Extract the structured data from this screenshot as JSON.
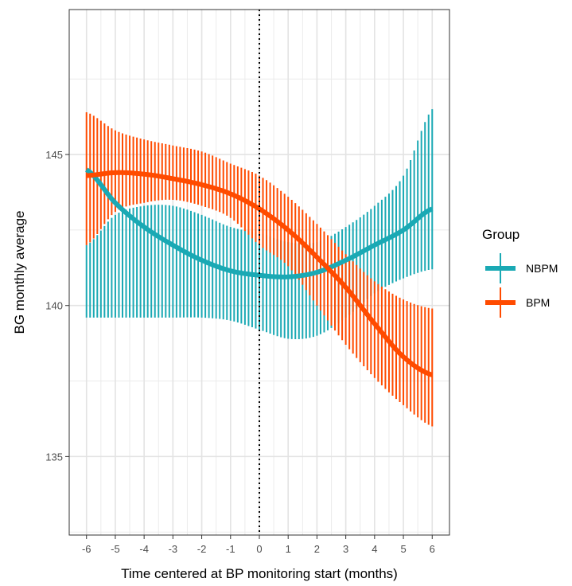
{
  "chart_data": {
    "type": "line",
    "xlabel": "Time centered at BP monitoring start (months)",
    "ylabel": "BG monthly average",
    "xlim": [
      -6.6,
      6.6
    ],
    "ylim": [
      132.4,
      149.8
    ],
    "xticks": [
      -6,
      -5,
      -4,
      -3,
      -2,
      -1,
      0,
      1,
      2,
      3,
      4,
      5,
      6
    ],
    "yticks": [
      135,
      140,
      145
    ],
    "xtick_labels": [
      "-6",
      "-5",
      "-4",
      "-3",
      "-2",
      "-1",
      "0",
      "1",
      "2",
      "3",
      "4",
      "5",
      "6"
    ],
    "ytick_labels": [
      "135",
      "140",
      "145"
    ],
    "grid": true,
    "reference_line": {
      "x": 0,
      "style": "dotted"
    },
    "legend": {
      "title": "Group",
      "position": "right",
      "entries": [
        "NBPM",
        "BPM"
      ]
    },
    "series": [
      {
        "name": "NBPM",
        "color": "#1aa9b4",
        "x": [
          -6,
          -5,
          -4,
          -3,
          -2,
          -1,
          0,
          1,
          2,
          3,
          4,
          5,
          6
        ],
        "y": [
          144.5,
          143.4,
          142.6,
          142.0,
          141.5,
          141.15,
          141.0,
          140.95,
          141.1,
          141.5,
          142.0,
          142.5,
          143.2
        ],
        "lower": [
          139.6,
          139.6,
          139.6,
          139.6,
          139.6,
          139.5,
          139.2,
          138.9,
          139.0,
          139.6,
          140.4,
          140.9,
          141.2
        ],
        "upper": [
          142.0,
          143.0,
          143.3,
          143.3,
          143.0,
          142.6,
          142.4,
          142.1,
          142.1,
          142.6,
          143.3,
          144.3,
          146.5
        ]
      },
      {
        "name": "BPM",
        "color": "#ff4b00",
        "x": [
          -6,
          -5,
          -4,
          -3,
          -2,
          -1,
          0,
          1,
          2,
          3,
          4,
          5,
          6
        ],
        "y": [
          144.3,
          144.4,
          144.35,
          144.2,
          144.0,
          143.7,
          143.2,
          142.5,
          141.6,
          140.6,
          139.4,
          138.3,
          137.7
        ],
        "lower": [
          142.0,
          143.1,
          143.4,
          143.5,
          143.3,
          142.9,
          142.0,
          141.3,
          140.0,
          138.7,
          137.6,
          136.7,
          136.0
        ],
        "upper": [
          146.4,
          145.8,
          145.5,
          145.3,
          145.1,
          144.7,
          144.3,
          143.6,
          142.7,
          141.7,
          140.8,
          140.2,
          139.9
        ]
      }
    ]
  }
}
